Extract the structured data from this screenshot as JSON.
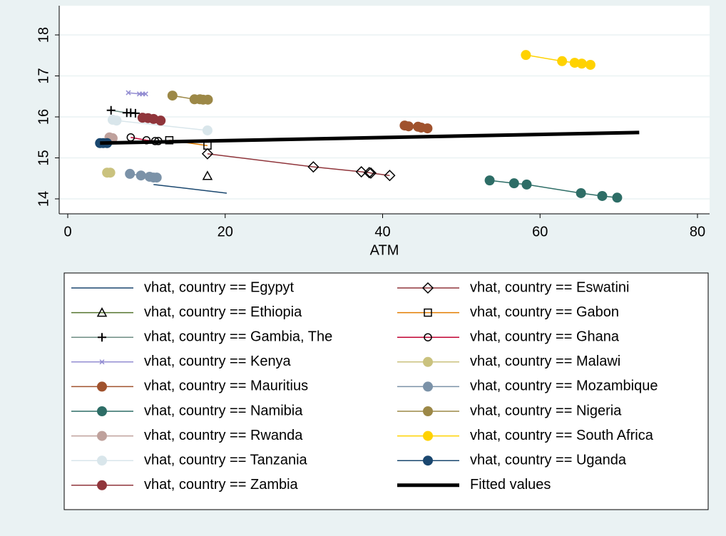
{
  "chart_data": {
    "type": "line",
    "x_label": "ATM",
    "xlim": [
      0,
      80
    ],
    "xticks": [
      0,
      20,
      40,
      60,
      80
    ],
    "ylim": [
      14,
      18
    ],
    "yticks": [
      14,
      15,
      16,
      17,
      18
    ],
    "grid": true,
    "series": [
      {
        "name": "vhat, country == Egypyt",
        "color": "#1a476f",
        "marker": "none",
        "x": [
          10.9,
          20.2
        ],
        "values": [
          14.35,
          14.14
        ]
      },
      {
        "name": "vhat, country == Eswatini",
        "color": "#90353b",
        "marker": "diamond",
        "marker_color": "#000000",
        "x": [
          17.75,
          31.2,
          37.3,
          38.3,
          38.5,
          40.9
        ],
        "values": [
          15.1,
          14.78,
          14.66,
          14.64,
          14.63,
          14.57
        ]
      },
      {
        "name": "vhat, country == Ethiopia",
        "color": "#55752f",
        "marker": "triangle",
        "marker_color": "#000000",
        "x": [
          17.75
        ],
        "values": [
          14.56
        ]
      },
      {
        "name": "vhat, country == Gabon",
        "color": "#e37e00",
        "marker": "square",
        "marker_color": "#000000",
        "x": [
          12.9,
          17.75
        ],
        "values": [
          15.43,
          15.3
        ]
      },
      {
        "name": "vhat, country == Gambia, The",
        "color": "#6e8e84",
        "marker": "plus",
        "marker_color": "#000000",
        "x": [
          5.5,
          7.5,
          8.0,
          8.6
        ],
        "values": [
          16.16,
          16.1,
          16.1,
          16.09
        ]
      },
      {
        "name": "vhat, country == Ghana",
        "color": "#c10534",
        "marker": "hollow-circle",
        "marker_color": "#000000",
        "x": [
          8.0,
          10.0,
          11.1,
          11.5
        ],
        "values": [
          15.5,
          15.43,
          15.41,
          15.41
        ]
      },
      {
        "name": "vhat, country == Kenya",
        "color": "#938dd2",
        "marker": "x",
        "x": [
          7.7,
          9.1,
          9.5,
          9.9
        ],
        "values": [
          16.59,
          16.56,
          16.56,
          16.56
        ]
      },
      {
        "name": "vhat, country == Malawi",
        "color": "#cac27e",
        "marker": "circle",
        "x": [
          5.0,
          5.4
        ],
        "values": [
          14.64,
          14.64
        ]
      },
      {
        "name": "vhat, country == Mauritius",
        "color": "#a0522d",
        "marker": "circle",
        "x": [
          42.8,
          43.3,
          44.5,
          44.9,
          45.7
        ],
        "values": [
          15.79,
          15.77,
          15.76,
          15.74,
          15.72
        ]
      },
      {
        "name": "vhat, country == Mozambique",
        "color": "#7b92a8",
        "marker": "circle",
        "x": [
          7.9,
          9.3,
          10.4,
          10.9,
          11.3
        ],
        "values": [
          14.61,
          14.57,
          14.54,
          14.52,
          14.52
        ]
      },
      {
        "name": "vhat, country == Namibia",
        "color": "#2d6d66",
        "marker": "circle",
        "x": [
          53.6,
          56.7,
          58.3,
          65.2,
          67.9,
          69.8
        ],
        "values": [
          14.45,
          14.38,
          14.35,
          14.14,
          14.07,
          14.03
        ]
      },
      {
        "name": "vhat, country == Nigeria",
        "color": "#9c8847",
        "marker": "circle",
        "x": [
          13.3,
          16.1,
          16.8,
          17.2,
          17.8
        ],
        "values": [
          16.52,
          16.43,
          16.43,
          16.42,
          16.42
        ]
      },
      {
        "name": "vhat, country == Rwanda",
        "color": "#bfa19c",
        "marker": "circle",
        "x": [
          5.3,
          5.7
        ],
        "values": [
          15.5,
          15.48
        ]
      },
      {
        "name": "vhat, country == South Africa",
        "color": "#ffd200",
        "marker": "circle",
        "x": [
          58.2,
          62.8,
          64.4,
          65.3,
          66.4
        ],
        "values": [
          17.51,
          17.36,
          17.32,
          17.3,
          17.27
        ]
      },
      {
        "name": "vhat, country == Tanzania",
        "color": "#d9e6eb",
        "marker": "circle",
        "x": [
          5.7,
          6.2,
          17.75
        ],
        "values": [
          15.93,
          15.91,
          15.67
        ]
      },
      {
        "name": "vhat, country == Uganda",
        "color": "#1a476f",
        "marker": "circle",
        "x": [
          4.1,
          4.5,
          5.0
        ],
        "values": [
          15.36,
          15.36,
          15.36
        ]
      },
      {
        "name": "vhat, country == Zambia",
        "color": "#90353b",
        "marker": "circle",
        "x": [
          9.5,
          10.2,
          10.9,
          11.8
        ],
        "values": [
          15.98,
          15.97,
          15.95,
          15.91
        ]
      },
      {
        "name": "Fitted values",
        "color": "#000000",
        "marker": "none",
        "line_width": 5,
        "x": [
          4.1,
          72.6
        ],
        "values": [
          15.36,
          15.62
        ]
      }
    ]
  }
}
